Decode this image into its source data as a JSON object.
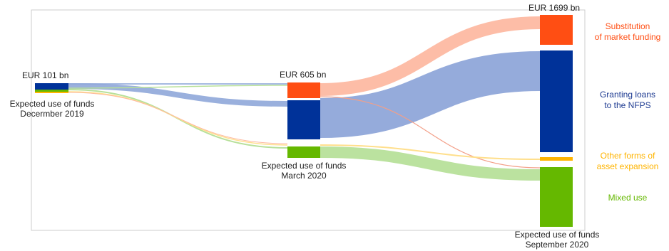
{
  "stages": [
    {
      "total": "EUR 101 bn",
      "caption_line1": "Expected use of funds",
      "caption_line2": "Decermber 2019"
    },
    {
      "total": "EUR 605 bn",
      "caption_line1": "Expected use of funds",
      "caption_line2": "March 2020"
    },
    {
      "total": "EUR 1699 bn",
      "caption_line1": "Expected use of funds",
      "caption_line2": "September 2020"
    }
  ],
  "categories": [
    {
      "line1": "Substitution",
      "line2": "of market funding",
      "color": "#ff4e13"
    },
    {
      "line1": "Granting loans",
      "line2": "to the NFPS",
      "color": "#003299"
    },
    {
      "line1": "Other forms of",
      "line2": "asset expansion",
      "color": "#ffb400"
    },
    {
      "line1": "Mixed use",
      "line2": "",
      "color": "#65b800"
    }
  ],
  "colors": {
    "market_flow": "#fdb9a2",
    "loans_flow": "#8fa7d9",
    "other_flow": "#ffdf8c",
    "mixed_flow": "#b7e09a",
    "frame": "#cccccc"
  }
}
